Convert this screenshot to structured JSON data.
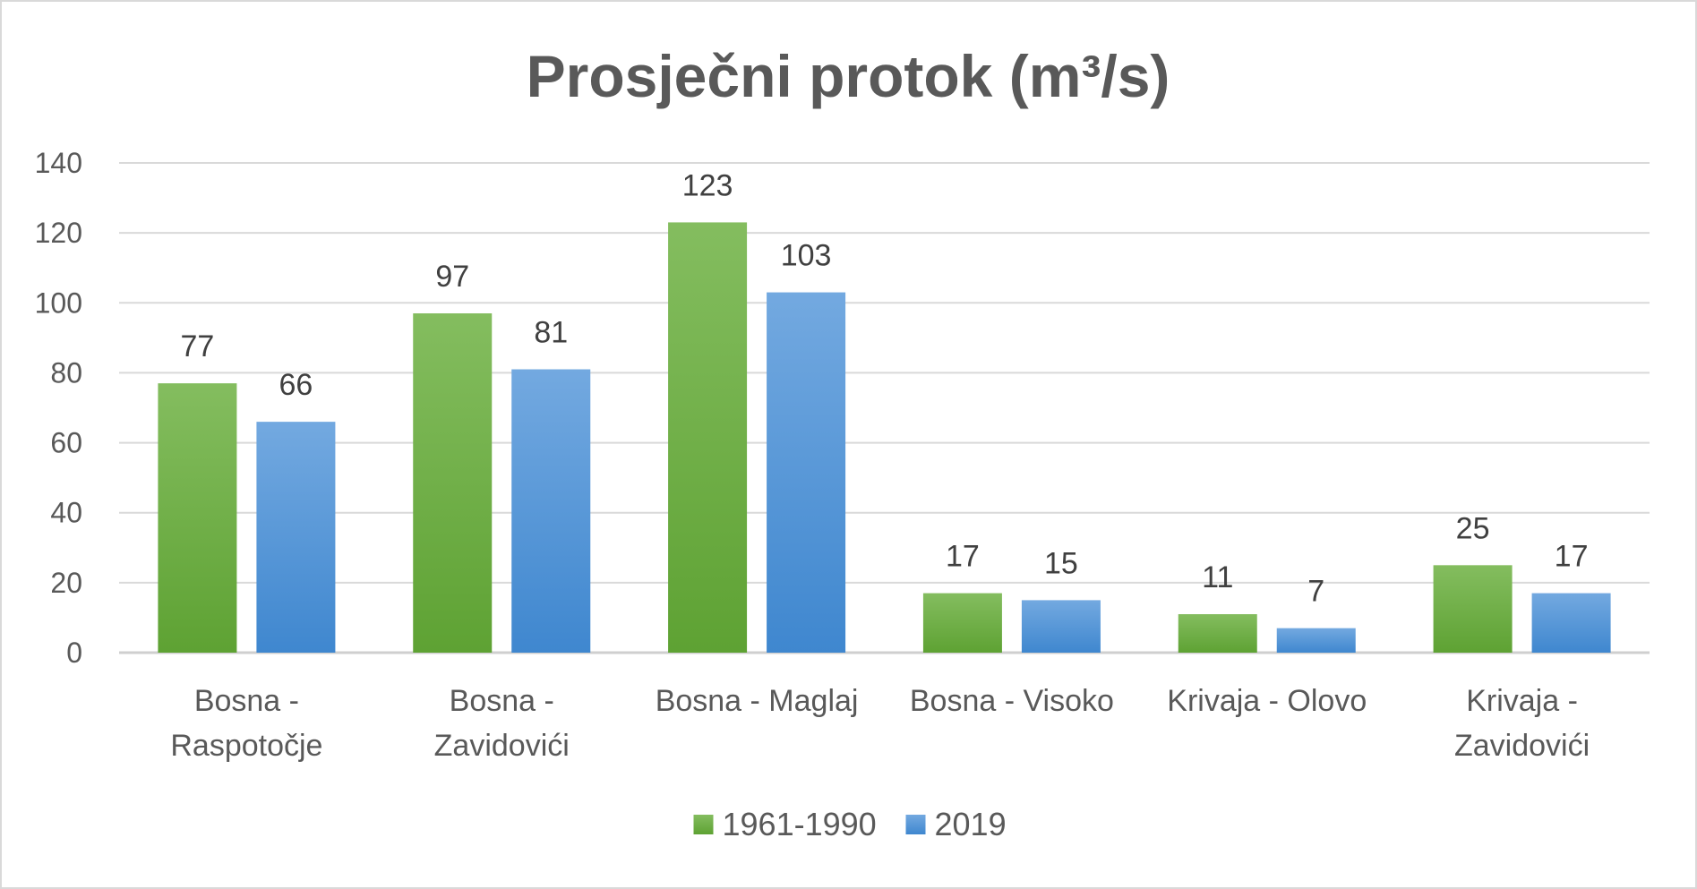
{
  "chart_data": {
    "type": "bar",
    "title": "Prosječni protok (m³/s)",
    "xlabel": "",
    "ylabel": "",
    "ylim": [
      0,
      140
    ],
    "yticks": [
      0,
      20,
      40,
      60,
      80,
      100,
      120,
      140
    ],
    "grid": true,
    "legend_position": "bottom",
    "categories": [
      [
        "Bosna -",
        "Raspotočje"
      ],
      [
        "Bosna -",
        "Zavidovići"
      ],
      [
        "Bosna - Maglaj"
      ],
      [
        "Bosna - Visoko"
      ],
      [
        "Krivaja - Olovo"
      ],
      [
        "Krivaja -",
        "Zavidovići"
      ]
    ],
    "series": [
      {
        "name": "1961-1990",
        "color": "#6aac3c",
        "values": [
          77,
          97,
          123,
          17,
          11,
          25
        ]
      },
      {
        "name": "2019",
        "color": "#4a90d4",
        "values": [
          66,
          81,
          103,
          15,
          7,
          17
        ]
      }
    ]
  }
}
